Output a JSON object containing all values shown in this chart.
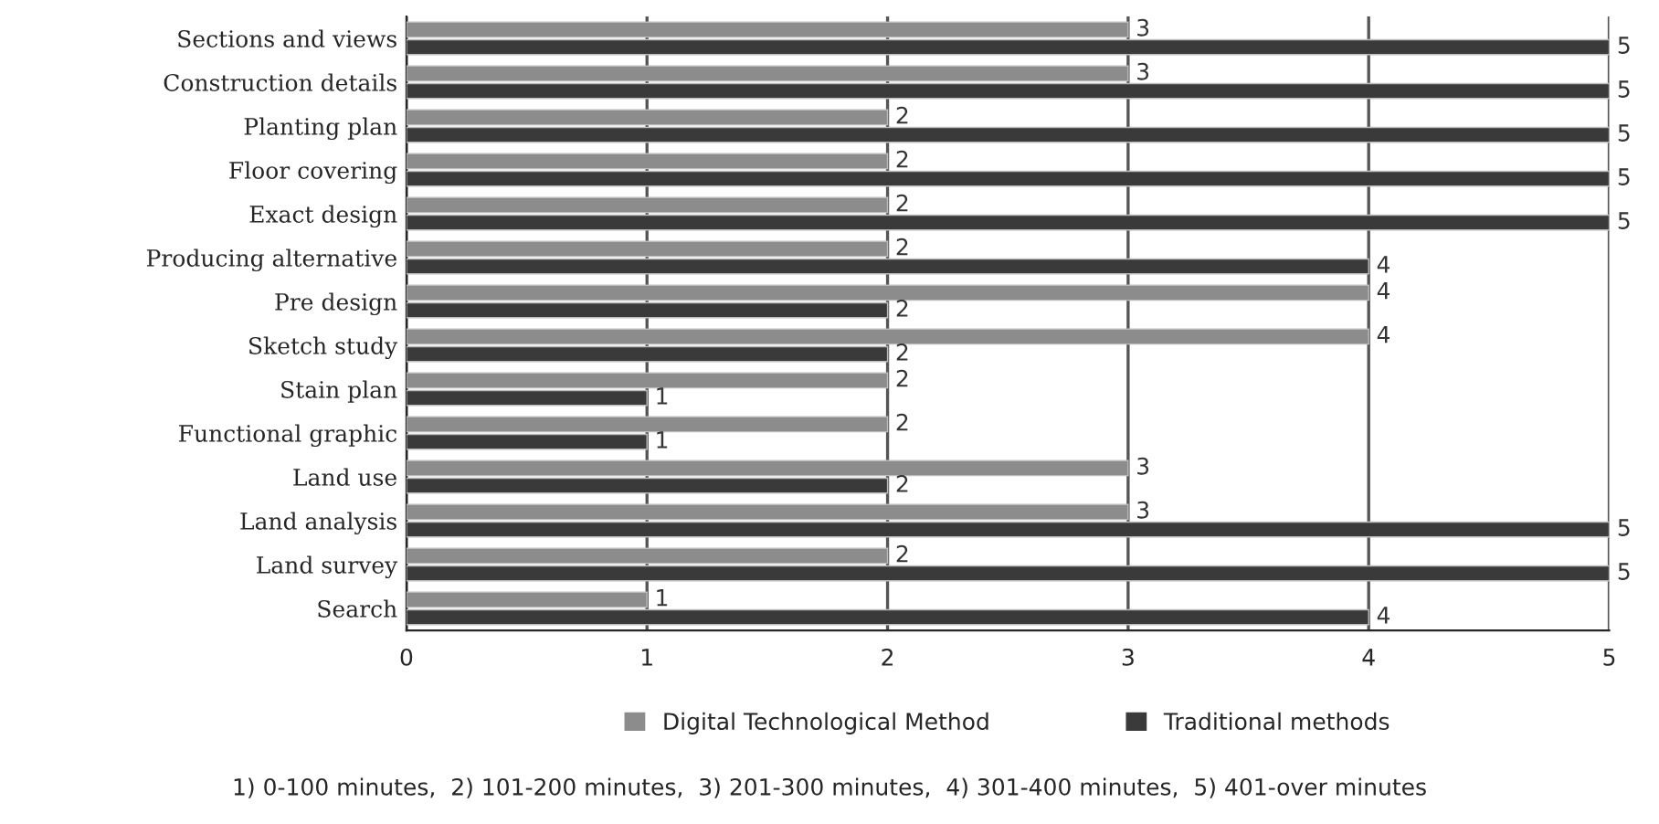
{
  "chart_data": {
    "type": "bar",
    "orientation": "horizontal",
    "categories": [
      "Sections and views",
      "Construction details",
      "Planting plan",
      "Floor covering",
      "Exact design",
      "Producing alternative",
      "Pre design",
      "Sketch study",
      "Stain plan",
      "Functional graphic",
      "Land use",
      "Land analysis",
      "Land survey",
      "Search"
    ],
    "series": [
      {
        "name": "Digital Technological Method",
        "color": "#8c8c8c",
        "values": [
          3,
          3,
          2,
          2,
          2,
          2,
          4,
          4,
          2,
          2,
          3,
          3,
          2,
          1
        ]
      },
      {
        "name": "Traditional methods",
        "color": "#3a3a3a",
        "values": [
          5,
          5,
          5,
          5,
          5,
          4,
          2,
          2,
          1,
          1,
          2,
          5,
          5,
          4
        ]
      }
    ],
    "xlim": [
      0,
      5
    ],
    "xticks": [
      0,
      1,
      2,
      3,
      4,
      5
    ],
    "grid": "x",
    "legend": "bottom",
    "data_labels": true,
    "annotations": [
      "1) 0-100 minutes,  2) 101-200 minutes,  3) 201-300 minutes,  4) 301-400 minutes,  5) 401-over minutes"
    ]
  }
}
